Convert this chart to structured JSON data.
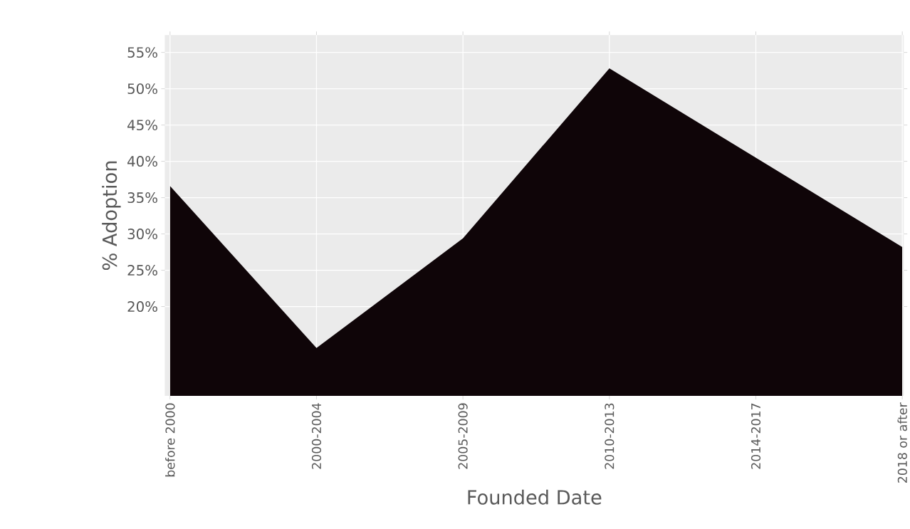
{
  "chart_data": {
    "type": "area",
    "xlabel": "Founded Date",
    "ylabel": "% Adoption",
    "categories": [
      "before 2000",
      "2000-2004",
      "2005-2009",
      "2010-2013",
      "2014-2017",
      "2018 or after"
    ],
    "values": [
      36.6,
      14.3,
      29.4,
      52.8,
      40.5,
      28.2
    ],
    "color": "#0f0508",
    "ylim": [
      7.7,
      57.4
    ],
    "yticks": [
      {
        "value": 20,
        "label": "20%"
      },
      {
        "value": 25,
        "label": "25%"
      },
      {
        "value": 30,
        "label": "30%"
      },
      {
        "value": 35,
        "label": "35%"
      },
      {
        "value": 40,
        "label": "40%"
      },
      {
        "value": 45,
        "label": "45%"
      },
      {
        "value": 50,
        "label": "50%"
      },
      {
        "value": 55,
        "label": "55%"
      }
    ],
    "grid": true
  }
}
